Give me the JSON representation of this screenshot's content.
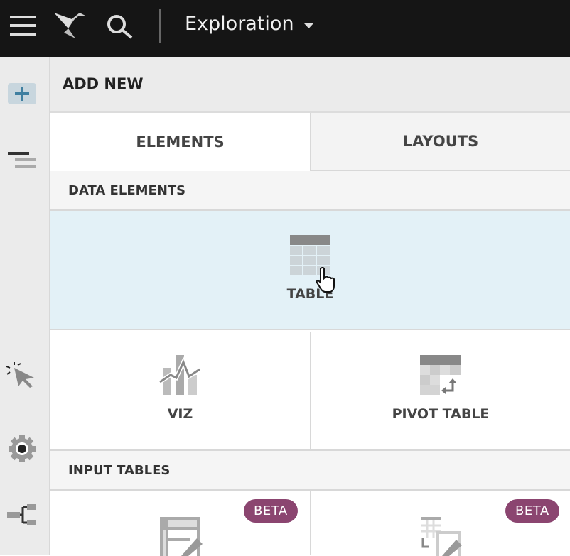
{
  "topbar": {
    "title": "Exploration",
    "icons": [
      "menu-icon",
      "logo-icon",
      "search-icon",
      "chevron-down-icon"
    ]
  },
  "rail": {
    "icons": [
      "plus-icon",
      "outline-icon",
      "cursor-click-icon",
      "gear-icon",
      "tree-icon"
    ]
  },
  "panel": {
    "header": "ADD NEW",
    "tabs": [
      {
        "label": "ELEMENTS",
        "active": true
      },
      {
        "label": "LAYOUTS",
        "active": false
      }
    ],
    "sections": [
      {
        "title": "DATA ELEMENTS",
        "items": [
          {
            "label": "TABLE",
            "hovered": true
          },
          {
            "label": "VIZ"
          },
          {
            "label": "PIVOT TABLE"
          }
        ]
      },
      {
        "title": "INPUT TABLES",
        "items": [
          {
            "badge": "BETA"
          },
          {
            "badge": "BETA"
          }
        ]
      }
    ]
  },
  "colors": {
    "topbar": "#151515",
    "hover": "#e3f1f7",
    "beta": "#8b4570",
    "accent": "#3f7fa0"
  }
}
